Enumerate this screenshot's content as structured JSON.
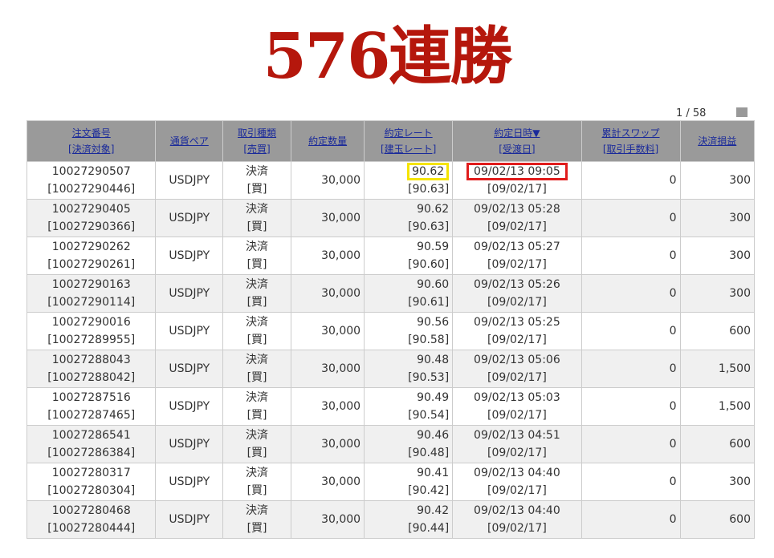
{
  "title": "576連勝",
  "pager": "1 / 58",
  "headers": [
    [
      "注文番号",
      "[決済対象]"
    ],
    [
      "通貨ペア",
      ""
    ],
    [
      "取引種類",
      "[売買]"
    ],
    [
      "約定数量",
      ""
    ],
    [
      "約定レート",
      "[建玉レート]"
    ],
    [
      "約定日時▼",
      "[受渡日]"
    ],
    [
      "累計スワップ",
      "[取引手数料]"
    ],
    [
      "決済損益",
      ""
    ]
  ],
  "highlight_colors": {
    "rate": "#f5e400",
    "datetime": "#e01c1c"
  },
  "rows": [
    [
      "10027290507",
      "[10027290446]",
      "USDJPY",
      "決済",
      "[買]",
      "30,000",
      "90.62",
      "[90.63]",
      "09/02/13 09:05",
      "[09/02/17]",
      "0",
      "300"
    ],
    [
      "10027290405",
      "[10027290366]",
      "USDJPY",
      "決済",
      "[買]",
      "30,000",
      "90.62",
      "[90.63]",
      "09/02/13 05:28",
      "[09/02/17]",
      "0",
      "300"
    ],
    [
      "10027290262",
      "[10027290261]",
      "USDJPY",
      "決済",
      "[買]",
      "30,000",
      "90.59",
      "[90.60]",
      "09/02/13 05:27",
      "[09/02/17]",
      "0",
      "300"
    ],
    [
      "10027290163",
      "[10027290114]",
      "USDJPY",
      "決済",
      "[買]",
      "30,000",
      "90.60",
      "[90.61]",
      "09/02/13 05:26",
      "[09/02/17]",
      "0",
      "300"
    ],
    [
      "10027290016",
      "[10027289955]",
      "USDJPY",
      "決済",
      "[買]",
      "30,000",
      "90.56",
      "[90.58]",
      "09/02/13 05:25",
      "[09/02/17]",
      "0",
      "600"
    ],
    [
      "10027288043",
      "[10027288042]",
      "USDJPY",
      "決済",
      "[買]",
      "30,000",
      "90.48",
      "[90.53]",
      "09/02/13 05:06",
      "[09/02/17]",
      "0",
      "1,500"
    ],
    [
      "10027287516",
      "[10027287465]",
      "USDJPY",
      "決済",
      "[買]",
      "30,000",
      "90.49",
      "[90.54]",
      "09/02/13 05:03",
      "[09/02/17]",
      "0",
      "1,500"
    ],
    [
      "10027286541",
      "[10027286384]",
      "USDJPY",
      "決済",
      "[買]",
      "30,000",
      "90.46",
      "[90.48]",
      "09/02/13 04:51",
      "[09/02/17]",
      "0",
      "600"
    ],
    [
      "10027280317",
      "[10027280304]",
      "USDJPY",
      "決済",
      "[買]",
      "30,000",
      "90.41",
      "[90.42]",
      "09/02/13 04:40",
      "[09/02/17]",
      "0",
      "300"
    ],
    [
      "10027280468",
      "[10027280444]",
      "USDJPY",
      "決済",
      "[買]",
      "30,000",
      "90.42",
      "[90.44]",
      "09/02/13 04:40",
      "[09/02/17]",
      "0",
      "600"
    ]
  ]
}
